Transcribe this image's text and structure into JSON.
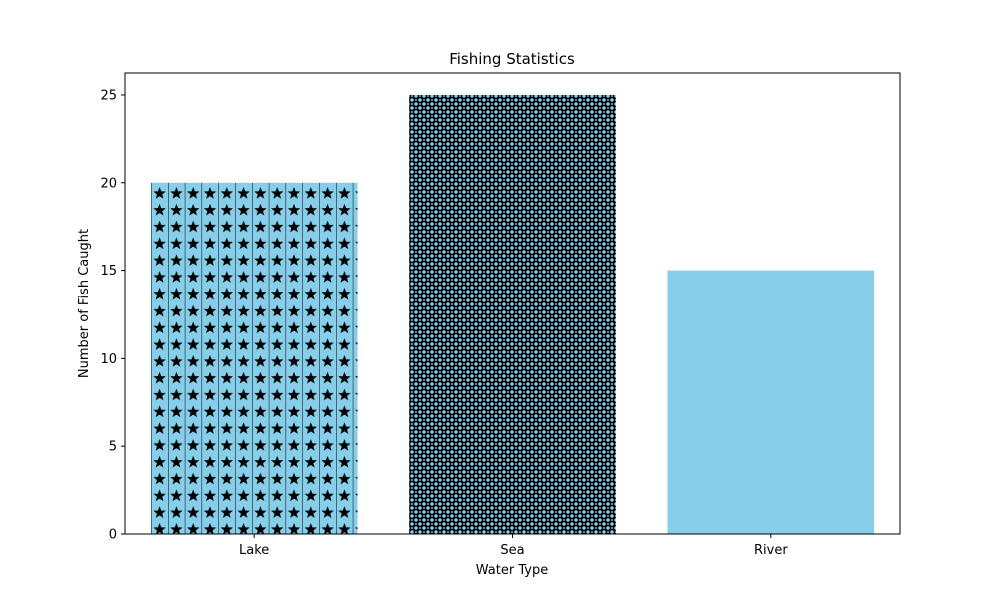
{
  "chart_data": {
    "type": "bar",
    "title": "Fishing Statistics",
    "xlabel": "Water Type",
    "ylabel": "Number of Fish Caught",
    "categories": [
      "Lake",
      "Sea",
      "River"
    ],
    "values": [
      20,
      25,
      15
    ],
    "ylim": [
      0,
      26.25
    ],
    "yticks": [
      0,
      5,
      10,
      15,
      20,
      25
    ],
    "grid": false,
    "bar_color": "#87CEEB",
    "hatch_color": "#000000",
    "hatches": [
      "star",
      "small-circle",
      "none"
    ]
  }
}
